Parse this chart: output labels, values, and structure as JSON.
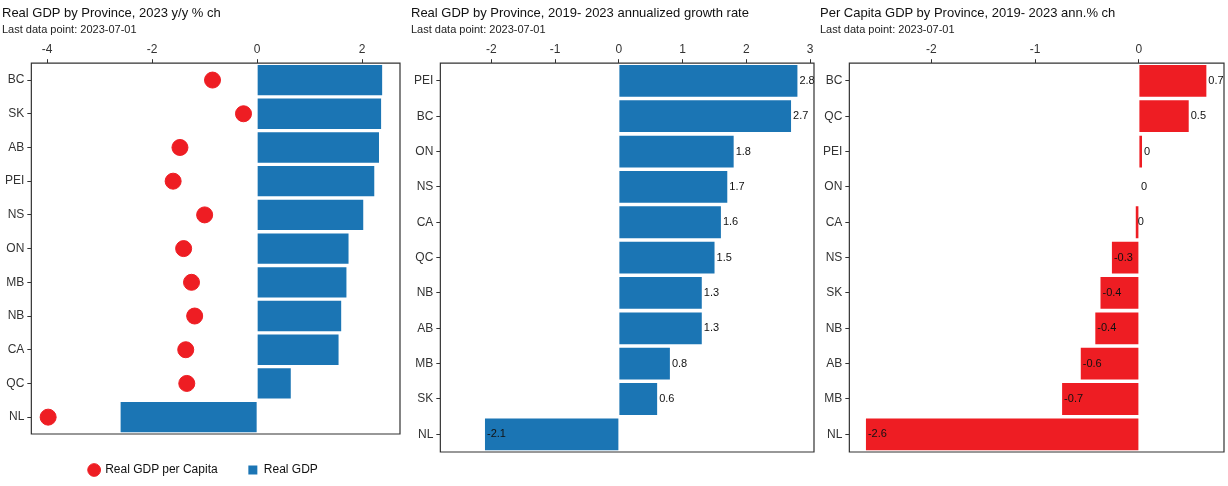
{
  "chart_data": [
    {
      "type": "bar",
      "orientation": "horizontal",
      "title": "Real GDP by Province, 2023 y/y % ch",
      "subtitle": "Last data point: 2023-07-01",
      "categories": [
        "BC",
        "SK",
        "AB",
        "PEI",
        "NS",
        "ON",
        "MB",
        "NB",
        "CA",
        "QC",
        "NL"
      ],
      "series": [
        {
          "name": "Real GDP",
          "color": "#1b75b4",
          "values": [
            2.38,
            2.36,
            2.32,
            2.23,
            2.02,
            1.74,
            1.7,
            1.6,
            1.55,
            0.64,
            -2.6
          ]
        },
        {
          "name": "Real GDP per Capita",
          "type": "scatter",
          "color": "#ee1d23",
          "x": [
            "BC",
            "SK",
            "AB",
            "PEI",
            "NS",
            "ON",
            "MB",
            "NB",
            "CA",
            "QC",
            "NL"
          ],
          "values": [
            -0.85,
            -0.26,
            -1.47,
            -1.6,
            -1.0,
            -1.4,
            -1.25,
            -1.19,
            -1.36,
            -1.34,
            -3.98
          ]
        }
      ],
      "xlim": [
        -4.3,
        2.72
      ],
      "xticks": [
        -4,
        -2,
        0,
        2
      ],
      "grid": false,
      "legend": "bottom"
    },
    {
      "type": "bar",
      "orientation": "horizontal",
      "title": "Real GDP by Province, 2019- 2023 annualized growth rate",
      "subtitle": "Last data point: 2023-07-01",
      "categories": [
        "PEI",
        "BC",
        "ON",
        "NS",
        "CA",
        "QC",
        "NB",
        "AB",
        "MB",
        "SK",
        "NL"
      ],
      "values": [
        2.8,
        2.7,
        1.8,
        1.7,
        1.6,
        1.5,
        1.3,
        1.3,
        0.8,
        0.6,
        -2.1
      ],
      "color": "#1b75b4",
      "data_labels": true,
      "xlim": [
        -2.8,
        3.06
      ],
      "xticks": [
        -2,
        -1,
        0,
        1,
        2,
        3
      ],
      "grid": false
    },
    {
      "type": "bar",
      "orientation": "horizontal",
      "title": "Per Capita GDP by Province, 2019- 2023 ann.% ch",
      "subtitle": "Last data point: 2023-07-01",
      "categories": [
        "BC",
        "QC",
        "PEI",
        "ON",
        "CA",
        "NS",
        "SK",
        "NB",
        "AB",
        "MB",
        "NL"
      ],
      "values": [
        0.65,
        0.48,
        0.03,
        0,
        -0.03,
        -0.26,
        -0.37,
        -0.42,
        -0.56,
        -0.74,
        -2.63
      ],
      "color": "#ee1d23",
      "value_labels": [
        "0.7",
        "0.5",
        "0",
        "0",
        "0",
        "-0.3",
        "-0.4",
        "-0.4",
        "-0.6",
        "-0.7",
        "-2.6"
      ],
      "xlim": [
        -2.79,
        0.82
      ],
      "xticks": [
        -2,
        -1,
        0
      ],
      "grid": false
    }
  ]
}
